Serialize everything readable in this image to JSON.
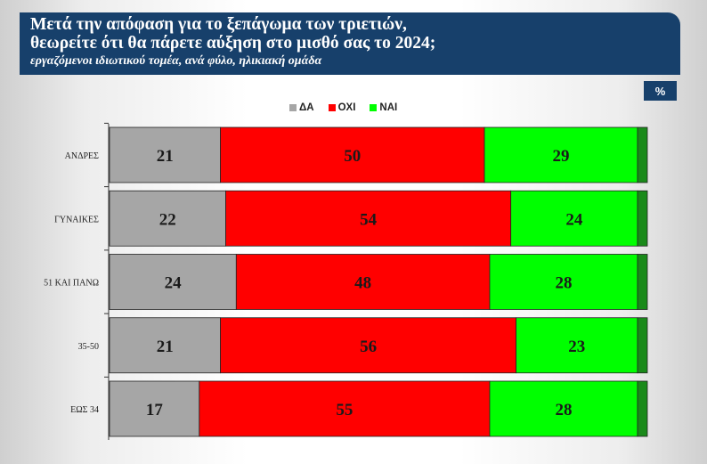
{
  "header": {
    "title_line1": "Μετά την απόφαση για το ξεπάγωμα των τριετιών,",
    "title_line2": "θεωρείτε ότι θα πάρετε αύξηση στο μισθό σας το 2024;",
    "subtitle": "εργαζόμενοι ιδιωτικού τομέα, ανά φύλο, ηλικιακή ομάδα"
  },
  "unit_badge": "%",
  "colors": {
    "da": "#a6a6a6",
    "oxi": "#ff0000",
    "nai": "#00ff00",
    "nai_end": "#1a8a1a",
    "header": "#17406b"
  },
  "chart_data": {
    "type": "bar",
    "orientation": "horizontal",
    "stacked": true,
    "categories": [
      "ΑΝΔΡΕΣ",
      "ΓΥΝΑΙΚΕΣ",
      "51 ΚΑΙ ΠΑΝΩ",
      "35-50",
      "ΕΩΣ 34"
    ],
    "series": [
      {
        "name": "ΔΑ",
        "values": [
          21,
          22,
          24,
          21,
          17
        ]
      },
      {
        "name": "ΟΧΙ",
        "values": [
          50,
          54,
          48,
          56,
          55
        ]
      },
      {
        "name": "ΝΑΙ",
        "values": [
          29,
          24,
          28,
          23,
          28
        ]
      }
    ],
    "xlim": [
      0,
      100
    ],
    "legend_position": "top-center",
    "unit": "%"
  }
}
